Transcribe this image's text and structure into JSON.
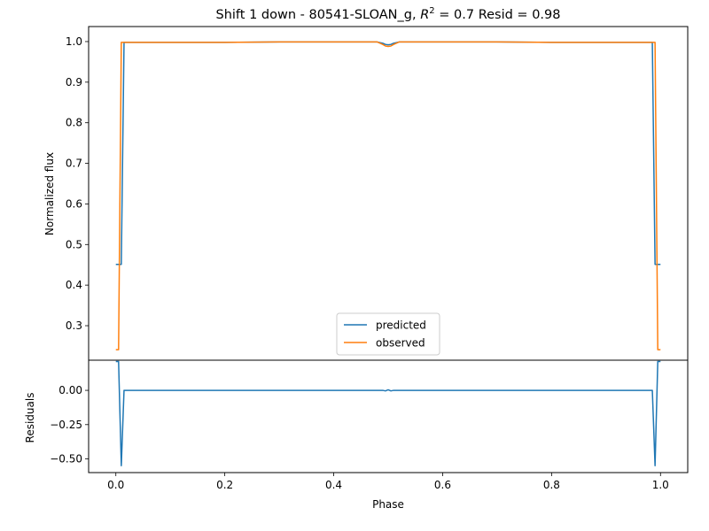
{
  "chart_data": [
    {
      "type": "line",
      "title": "Shift 1 down - 80541-SLOAN_g, R² = 0.7 Resid = 0.98",
      "title_parts": {
        "prefix": "Shift 1 down - 80541-SLOAN_g, ",
        "r_symbol": "R",
        "r_exp": "2",
        "r_value": " = 0.7 Resid = 0.98"
      },
      "xlabel": "",
      "ylabel": "Normalized flux",
      "xlim": [
        -0.05,
        1.05
      ],
      "ylim": [
        0.215,
        1.037
      ],
      "yticks": [
        0.3,
        0.4,
        0.5,
        0.6,
        0.7,
        0.8,
        0.9,
        1.0
      ],
      "ytick_labels": [
        "0.3",
        "0.4",
        "0.5",
        "0.6",
        "0.7",
        "0.8",
        "0.9",
        "1.0"
      ],
      "legend_position": "lower center",
      "series": [
        {
          "name": "predicted",
          "color": "#1f77b4",
          "x": [
            0.0,
            0.005,
            0.01,
            0.015,
            0.1,
            0.2,
            0.3,
            0.4,
            0.48,
            0.49,
            0.495,
            0.5,
            0.505,
            0.51,
            0.52,
            0.6,
            0.7,
            0.8,
            0.9,
            0.985,
            0.99,
            0.995,
            1.0
          ],
          "y": [
            0.451,
            0.451,
            0.451,
            0.998,
            0.998,
            0.998,
            0.999,
            0.999,
            0.999,
            0.996,
            0.993,
            0.992,
            0.993,
            0.996,
            0.999,
            0.999,
            0.999,
            0.998,
            0.998,
            0.998,
            0.451,
            0.451,
            0.451
          ]
        },
        {
          "name": "observed",
          "color": "#ff7f0e",
          "x": [
            0.0,
            0.005,
            0.01,
            0.1,
            0.2,
            0.3,
            0.4,
            0.48,
            0.49,
            0.495,
            0.5,
            0.505,
            0.51,
            0.52,
            0.6,
            0.7,
            0.8,
            0.9,
            0.99,
            0.995,
            1.0
          ],
          "y": [
            0.241,
            0.241,
            0.998,
            0.998,
            0.998,
            0.999,
            0.999,
            0.999,
            0.993,
            0.989,
            0.988,
            0.989,
            0.993,
            0.999,
            0.999,
            0.999,
            0.998,
            0.998,
            0.998,
            0.241,
            0.241
          ]
        }
      ]
    },
    {
      "type": "line",
      "title": "",
      "xlabel": "Phase",
      "ylabel": "Residuals",
      "xlim": [
        -0.05,
        1.05
      ],
      "ylim": [
        -0.6,
        0.22
      ],
      "xticks": [
        0.0,
        0.2,
        0.4,
        0.6,
        0.8,
        1.0
      ],
      "xtick_labels": [
        "0.0",
        "0.2",
        "0.4",
        "0.6",
        "0.8",
        "1.0"
      ],
      "yticks": [
        -0.5,
        -0.25,
        0.0
      ],
      "ytick_labels": [
        "−0.50",
        "−0.25",
        "0.00"
      ],
      "series": [
        {
          "color": "#1f77b4",
          "x": [
            0.0,
            0.005,
            0.01,
            0.015,
            0.1,
            0.2,
            0.3,
            0.4,
            0.49,
            0.495,
            0.5,
            0.505,
            0.51,
            0.6,
            0.7,
            0.8,
            0.9,
            0.985,
            0.99,
            0.995,
            1.0
          ],
          "y": [
            0.21,
            0.21,
            -0.55,
            0.0,
            0.0,
            0.0,
            0.0,
            0.0,
            0.0,
            -0.004,
            0.004,
            -0.004,
            0.0,
            0.0,
            0.0,
            0.0,
            0.0,
            0.0,
            -0.55,
            0.21,
            0.21
          ]
        }
      ]
    }
  ]
}
